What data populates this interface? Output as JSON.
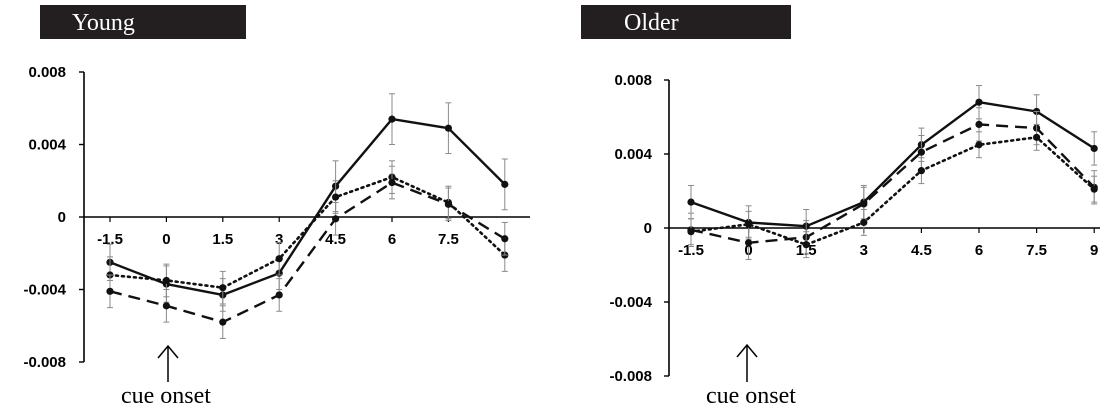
{
  "chart_data": [
    {
      "type": "line",
      "title": "Young",
      "annotation": "cue onset",
      "annotation_x": 0,
      "x": [
        -1.5,
        0,
        1.5,
        3,
        4.5,
        6,
        7.5,
        9
      ],
      "x_tick_labels": [
        "-1.5",
        "0",
        "1.5",
        "3",
        "4.5",
        "6",
        "7.5"
      ],
      "y_ticks": [
        0.008,
        0.004,
        0,
        -0.004,
        -0.008
      ],
      "y_tick_labels": [
        "0.008",
        "0.004",
        "0",
        "-0.004",
        "-0.008"
      ],
      "ylim": [
        -0.008,
        0.008
      ],
      "error_bars": true,
      "series": [
        {
          "style": "solid",
          "values": [
            -0.0025,
            -0.0037,
            -0.0043,
            -0.0031,
            0.0017,
            0.0054,
            0.0049,
            0.0018
          ],
          "errors": [
            0.001,
            0.001,
            0.0009,
            0.0009,
            0.0014,
            0.0014,
            0.0014,
            0.0014
          ]
        },
        {
          "style": "dotted",
          "values": [
            -0.0032,
            -0.0035,
            -0.0039,
            -0.0023,
            0.0011,
            0.0022,
            0.0008,
            -0.0021
          ],
          "errors": [
            0.001,
            0.0009,
            0.0009,
            0.0009,
            0.0009,
            0.0009,
            0.0009,
            0.0009
          ]
        },
        {
          "style": "dashed",
          "values": [
            -0.0041,
            -0.0049,
            -0.0058,
            -0.0043,
            -0.0001,
            0.0019,
            0.0007,
            -0.0012
          ],
          "errors": [
            0.0009,
            0.0009,
            0.0009,
            0.0009,
            0.0009,
            0.0009,
            0.0009,
            0.0009
          ]
        }
      ]
    },
    {
      "type": "line",
      "title": "Older",
      "annotation": "cue onset",
      "annotation_x": 0,
      "x": [
        -1.5,
        0,
        1.5,
        3,
        4.5,
        6,
        7.5,
        9
      ],
      "x_tick_labels": [
        "-1.5",
        "0",
        "1.5",
        "3",
        "4.5",
        "6",
        "7.5",
        "9"
      ],
      "y_ticks": [
        0.008,
        0.004,
        0,
        -0.004,
        -0.008
      ],
      "y_tick_labels": [
        "0.008",
        "0.004",
        "0",
        "-0.004",
        "-0.008"
      ],
      "ylim": [
        -0.008,
        0.008
      ],
      "error_bars": true,
      "series": [
        {
          "style": "solid",
          "values": [
            0.0014,
            0.0003,
            0.0001,
            0.0014,
            0.0045,
            0.0068,
            0.0063,
            0.0043
          ],
          "errors": [
            0.0009,
            0.0009,
            0.0009,
            0.0009,
            0.0009,
            0.0009,
            0.0009,
            0.0009
          ]
        },
        {
          "style": "dashed",
          "values": [
            -0.0001,
            -0.0008,
            -0.0005,
            0.0013,
            0.0041,
            0.0056,
            0.0054,
            0.0022
          ],
          "errors": [
            0.0009,
            0.0009,
            0.0009,
            0.0009,
            0.0009,
            0.0009,
            0.0009,
            0.0009
          ]
        },
        {
          "style": "dotted",
          "values": [
            -0.0002,
            0.0002,
            -0.0009,
            0.0003,
            0.0031,
            0.0045,
            0.0049,
            0.0021
          ],
          "errors": [
            0.0007,
            0.0007,
            0.0007,
            0.0007,
            0.0007,
            0.0007,
            0.0007,
            0.0007
          ]
        }
      ]
    }
  ]
}
